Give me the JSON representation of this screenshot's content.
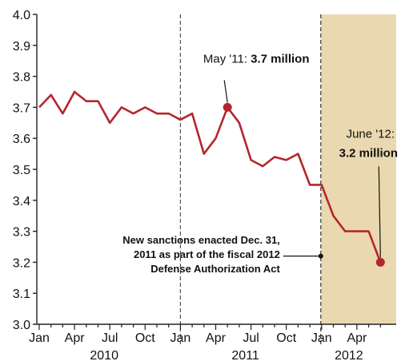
{
  "chart_data": {
    "type": "line",
    "x": [
      "2010-01",
      "2010-02",
      "2010-03",
      "2010-04",
      "2010-05",
      "2010-06",
      "2010-07",
      "2010-08",
      "2010-09",
      "2010-10",
      "2010-11",
      "2010-12",
      "2011-01",
      "2011-02",
      "2011-03",
      "2011-04",
      "2011-05",
      "2011-06",
      "2011-07",
      "2011-08",
      "2011-09",
      "2011-10",
      "2011-11",
      "2011-12",
      "2012-01",
      "2012-02",
      "2012-03",
      "2012-04",
      "2012-05",
      "2012-06"
    ],
    "series": [
      {
        "values": [
          3.7,
          3.74,
          3.68,
          3.75,
          3.72,
          3.72,
          3.65,
          3.7,
          3.68,
          3.7,
          3.68,
          3.68,
          3.66,
          3.68,
          3.55,
          3.6,
          3.7,
          3.65,
          3.53,
          3.51,
          3.54,
          3.53,
          3.55,
          3.45,
          3.45,
          3.35,
          3.3,
          3.3,
          3.3,
          3.2
        ],
        "color": "#b5252e"
      }
    ],
    "ylim": [
      3.0,
      4.0
    ],
    "yticks": [
      "3.0",
      "3.1",
      "3.2",
      "3.3",
      "3.4",
      "3.5",
      "3.6",
      "3.7",
      "3.8",
      "3.9",
      "4.0"
    ],
    "xtick_labels": [
      "Jan",
      "Apr",
      "Jul",
      "Oct",
      "Jan",
      "Apr",
      "Jul",
      "Oct",
      "Jan",
      "Apr"
    ],
    "year_labels": [
      "2010",
      "2011",
      "2012"
    ],
    "highlight_region": {
      "from": "2012-01",
      "to": "2012-06",
      "color": "#ead9b0"
    },
    "annotations": [
      {
        "text_prefix": "May '11:",
        "text_bold": "3.7 million",
        "x": "2011-05",
        "y": 3.7
      },
      {
        "text_prefix": "June '12:",
        "text_bold": "3.2 million",
        "x": "2012-06",
        "y": 3.2
      }
    ],
    "note": {
      "lines": [
        "New sanctions enacted Dec. 31,",
        "2011 as part of the fiscal 2012",
        "Defense Authorization Act"
      ],
      "x": "2012-01"
    },
    "grid": false
  }
}
